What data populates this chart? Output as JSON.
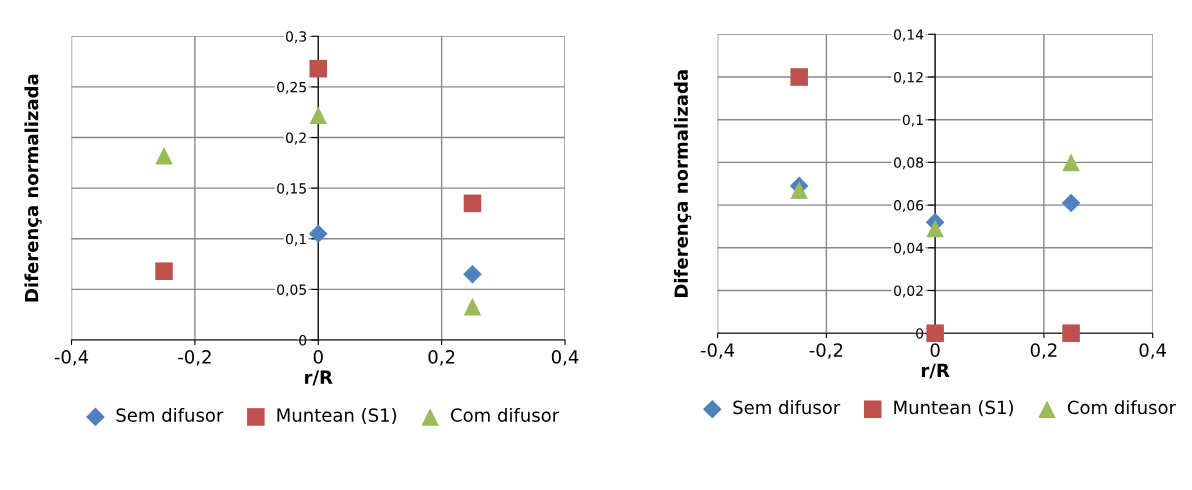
{
  "chart_data": [
    {
      "type": "scatter",
      "xlabel": "r/R",
      "ylabel": "Diferença normalizada",
      "x": [
        -0.25,
        0,
        0.25
      ],
      "xlim": [
        -0.4,
        0.4
      ],
      "xticks": [
        {
          "value": -0.4,
          "label": "-0,4"
        },
        {
          "value": -0.2,
          "label": "-0,2"
        },
        {
          "value": 0,
          "label": "0"
        },
        {
          "value": 0.2,
          "label": "0,2"
        },
        {
          "value": 0.4,
          "label": "0,4"
        }
      ],
      "ylim": [
        0,
        0.3
      ],
      "yticks": [
        {
          "value": 0,
          "label": "0"
        },
        {
          "value": 0.05,
          "label": "0,05"
        },
        {
          "value": 0.1,
          "label": "0,1"
        },
        {
          "value": 0.15,
          "label": "0,15"
        },
        {
          "value": 0.2,
          "label": "0,2"
        },
        {
          "value": 0.25,
          "label": "0,25"
        },
        {
          "value": 0.3,
          "label": "0,3"
        }
      ],
      "grid": true,
      "legend": "bottom",
      "series": [
        {
          "name": "Sem difusor",
          "color": "#4f81bd",
          "marker": "diamond",
          "values": [
            null,
            0.105,
            0.065
          ]
        },
        {
          "name": "Muntean (S1)",
          "color": "#c0504d",
          "marker": "square",
          "values": [
            0.068,
            0.268,
            0.135
          ]
        },
        {
          "name": "Com difusor",
          "color": "#9bbb59",
          "marker": "triangle",
          "values": [
            0.182,
            0.222,
            0.033
          ]
        }
      ]
    },
    {
      "type": "scatter",
      "xlabel": "r/R",
      "ylabel": "Diferença normalizada",
      "x": [
        -0.25,
        0,
        0.25
      ],
      "xlim": [
        -0.4,
        0.4
      ],
      "xticks": [
        {
          "value": -0.4,
          "label": "-0,4"
        },
        {
          "value": -0.2,
          "label": "-0,2"
        },
        {
          "value": 0,
          "label": "0"
        },
        {
          "value": 0.2,
          "label": "0,2"
        },
        {
          "value": 0.4,
          "label": "0,4"
        }
      ],
      "ylim": [
        0,
        0.14
      ],
      "yticks": [
        {
          "value": 0,
          "label": "0"
        },
        {
          "value": 0.02,
          "label": "0,02"
        },
        {
          "value": 0.04,
          "label": "0,04"
        },
        {
          "value": 0.06,
          "label": "0,06"
        },
        {
          "value": 0.08,
          "label": "0,08"
        },
        {
          "value": 0.1,
          "label": "0,1"
        },
        {
          "value": 0.12,
          "label": "0,12"
        },
        {
          "value": 0.14,
          "label": "0,14"
        }
      ],
      "grid": true,
      "legend": "bottom",
      "series": [
        {
          "name": "Sem difusor",
          "color": "#4f81bd",
          "marker": "diamond",
          "values": [
            0.069,
            0.052,
            0.061
          ]
        },
        {
          "name": "Muntean (S1)",
          "color": "#c0504d",
          "marker": "square",
          "values": [
            0.12,
            0,
            0
          ]
        },
        {
          "name": "Com difusor",
          "color": "#9bbb59",
          "marker": "triangle",
          "values": [
            0.067,
            0.049,
            0.08
          ]
        }
      ]
    }
  ]
}
